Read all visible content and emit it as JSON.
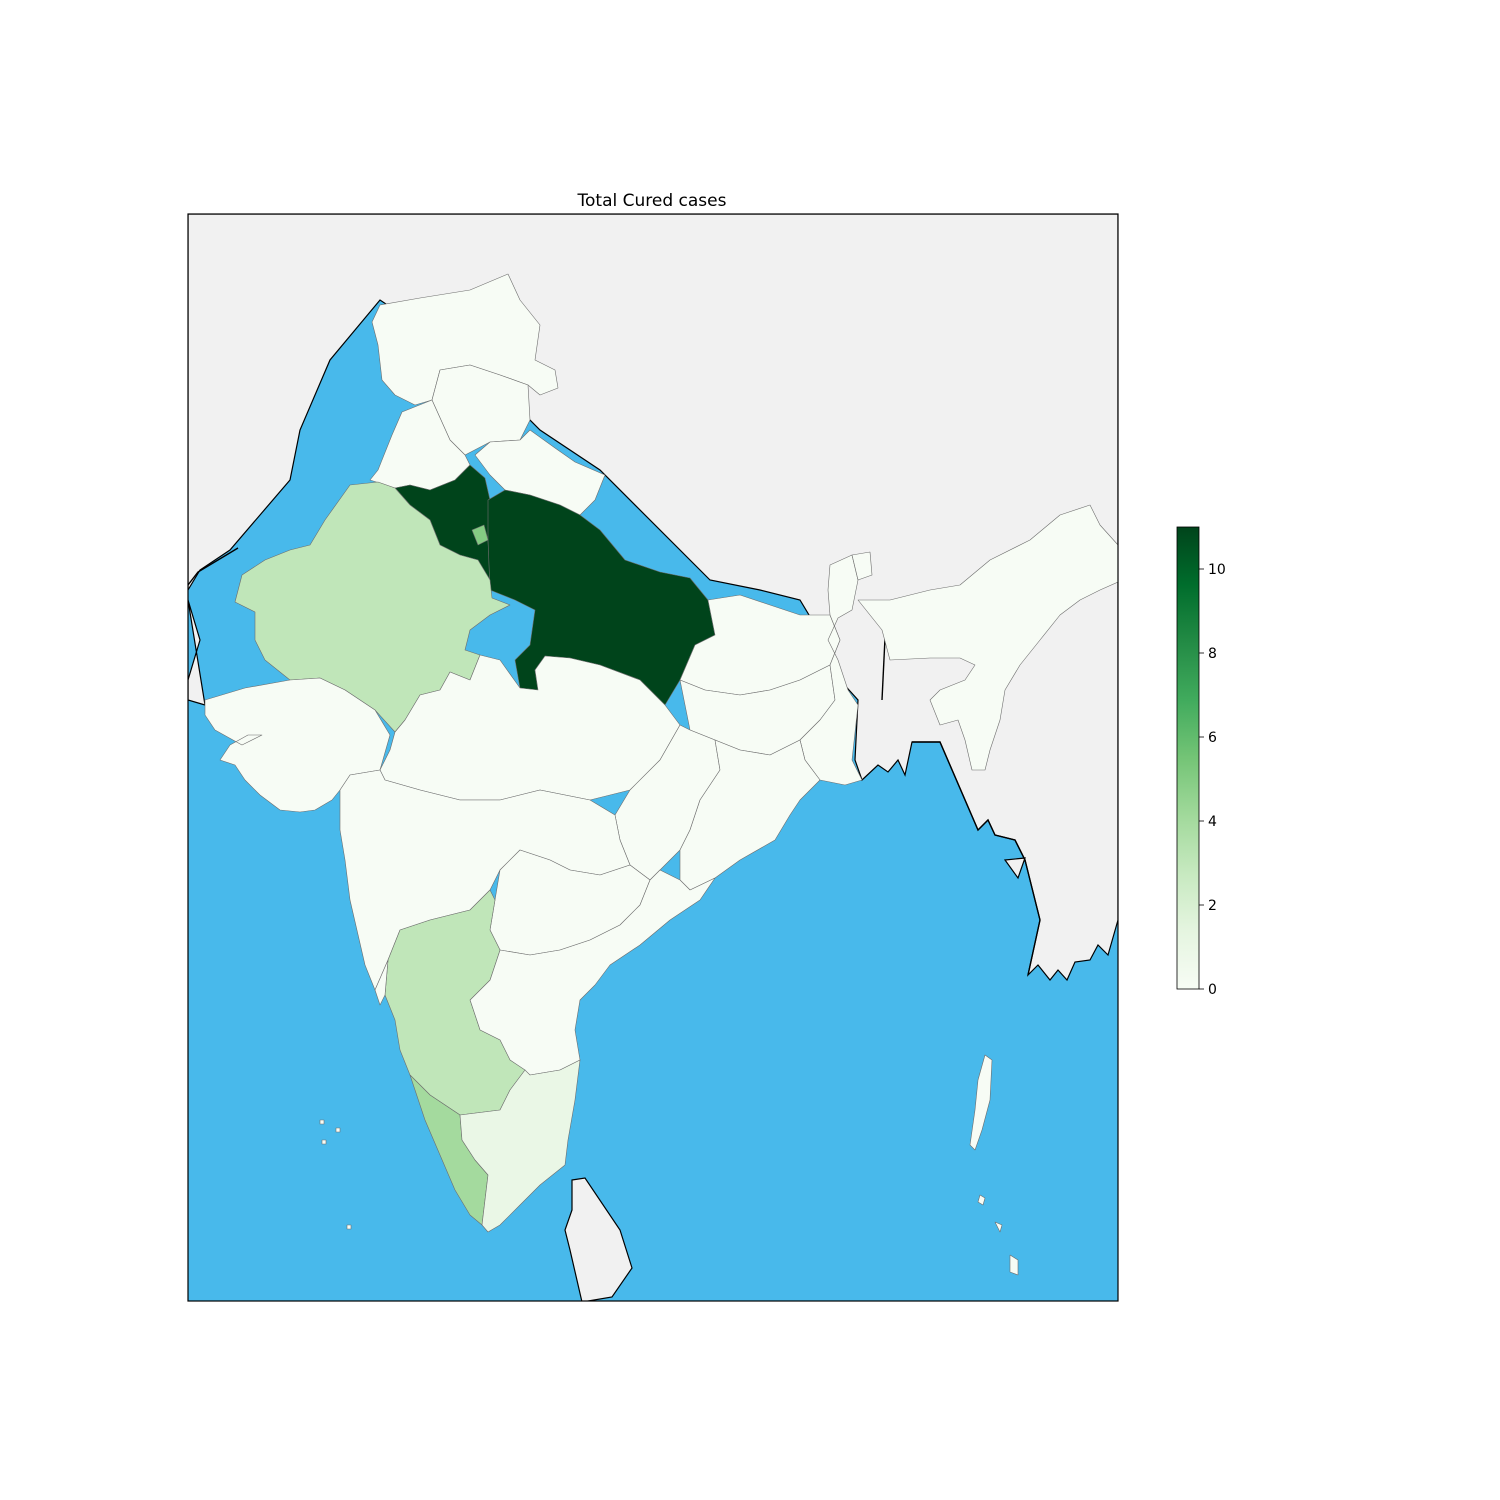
{
  "chart_data": {
    "type": "choropleth",
    "title": "Total Cured cases",
    "colormap": "Greens",
    "colorbar": {
      "min": 0,
      "max": 11,
      "ticks": [
        "0",
        "2",
        "4",
        "6",
        "8",
        "10"
      ],
      "stops": [
        "#f7fcf5",
        "#e5f5e0",
        "#c7e9c0",
        "#a1d99b",
        "#74c476",
        "#41ab5d",
        "#238b45",
        "#006d2c",
        "#00441b"
      ]
    },
    "colors": {
      "ocean": "#48b9eb",
      "foreign_land": "#f1f1f1",
      "state_border": "#6e6e6e"
    },
    "regions": [
      {
        "name": "Jammu and Kashmir",
        "value": 0
      },
      {
        "name": "Himachal Pradesh",
        "value": 0
      },
      {
        "name": "Punjab",
        "value": 0
      },
      {
        "name": "Uttarakhand",
        "value": 0
      },
      {
        "name": "Haryana",
        "value": 11
      },
      {
        "name": "Delhi",
        "value": 5
      },
      {
        "name": "Uttar Pradesh",
        "value": 11
      },
      {
        "name": "Rajasthan",
        "value": 3
      },
      {
        "name": "Gujarat",
        "value": 0
      },
      {
        "name": "Madhya Pradesh",
        "value": 0
      },
      {
        "name": "Bihar",
        "value": 0
      },
      {
        "name": "Jharkhand",
        "value": 0
      },
      {
        "name": "West Bengal",
        "value": 0
      },
      {
        "name": "Odisha",
        "value": 0
      },
      {
        "name": "Chhattisgarh",
        "value": 0
      },
      {
        "name": "Maharashtra",
        "value": 0
      },
      {
        "name": "Telangana",
        "value": 0
      },
      {
        "name": "Andhra Pradesh",
        "value": 0
      },
      {
        "name": "Karnataka",
        "value": 3
      },
      {
        "name": "Goa",
        "value": 0
      },
      {
        "name": "Kerala",
        "value": 4
      },
      {
        "name": "Tamil Nadu",
        "value": 1
      },
      {
        "name": "Sikkim",
        "value": 0
      },
      {
        "name": "Northeast states",
        "value": 0
      },
      {
        "name": "Andaman and Nicobar Islands",
        "value": 0
      },
      {
        "name": "Lakshadweep",
        "value": 0
      }
    ]
  }
}
